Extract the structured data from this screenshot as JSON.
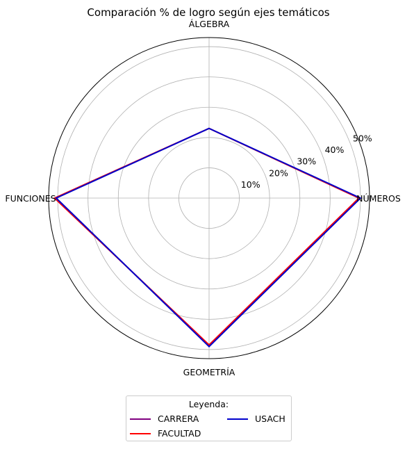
{
  "chart_data": {
    "type": "radar",
    "title": "Comparación % de logro según ejes temáticos",
    "axes": [
      "ÁLGEBRA",
      "NÚMEROS",
      "GEOMETRÍA",
      "FUNCIONES"
    ],
    "r_ticks": [
      10,
      20,
      30,
      40,
      50
    ],
    "r_tick_labels": [
      "10%",
      "20%",
      "30%",
      "40%",
      "50%"
    ],
    "r_max": 53,
    "grid": true,
    "legend": {
      "title": "Leyenda:",
      "placement": "bottom-center"
    },
    "series": [
      {
        "name": "CARRERA",
        "color": "#800080",
        "values": [
          23,
          49.5,
          48.5,
          51
        ]
      },
      {
        "name": "FACULTAD",
        "color": "#ff0000",
        "values": [
          23,
          49.5,
          48.5,
          51
        ]
      },
      {
        "name": "USACH",
        "color": "#0000cc",
        "values": [
          23,
          50,
          49,
          50.5
        ]
      }
    ]
  }
}
